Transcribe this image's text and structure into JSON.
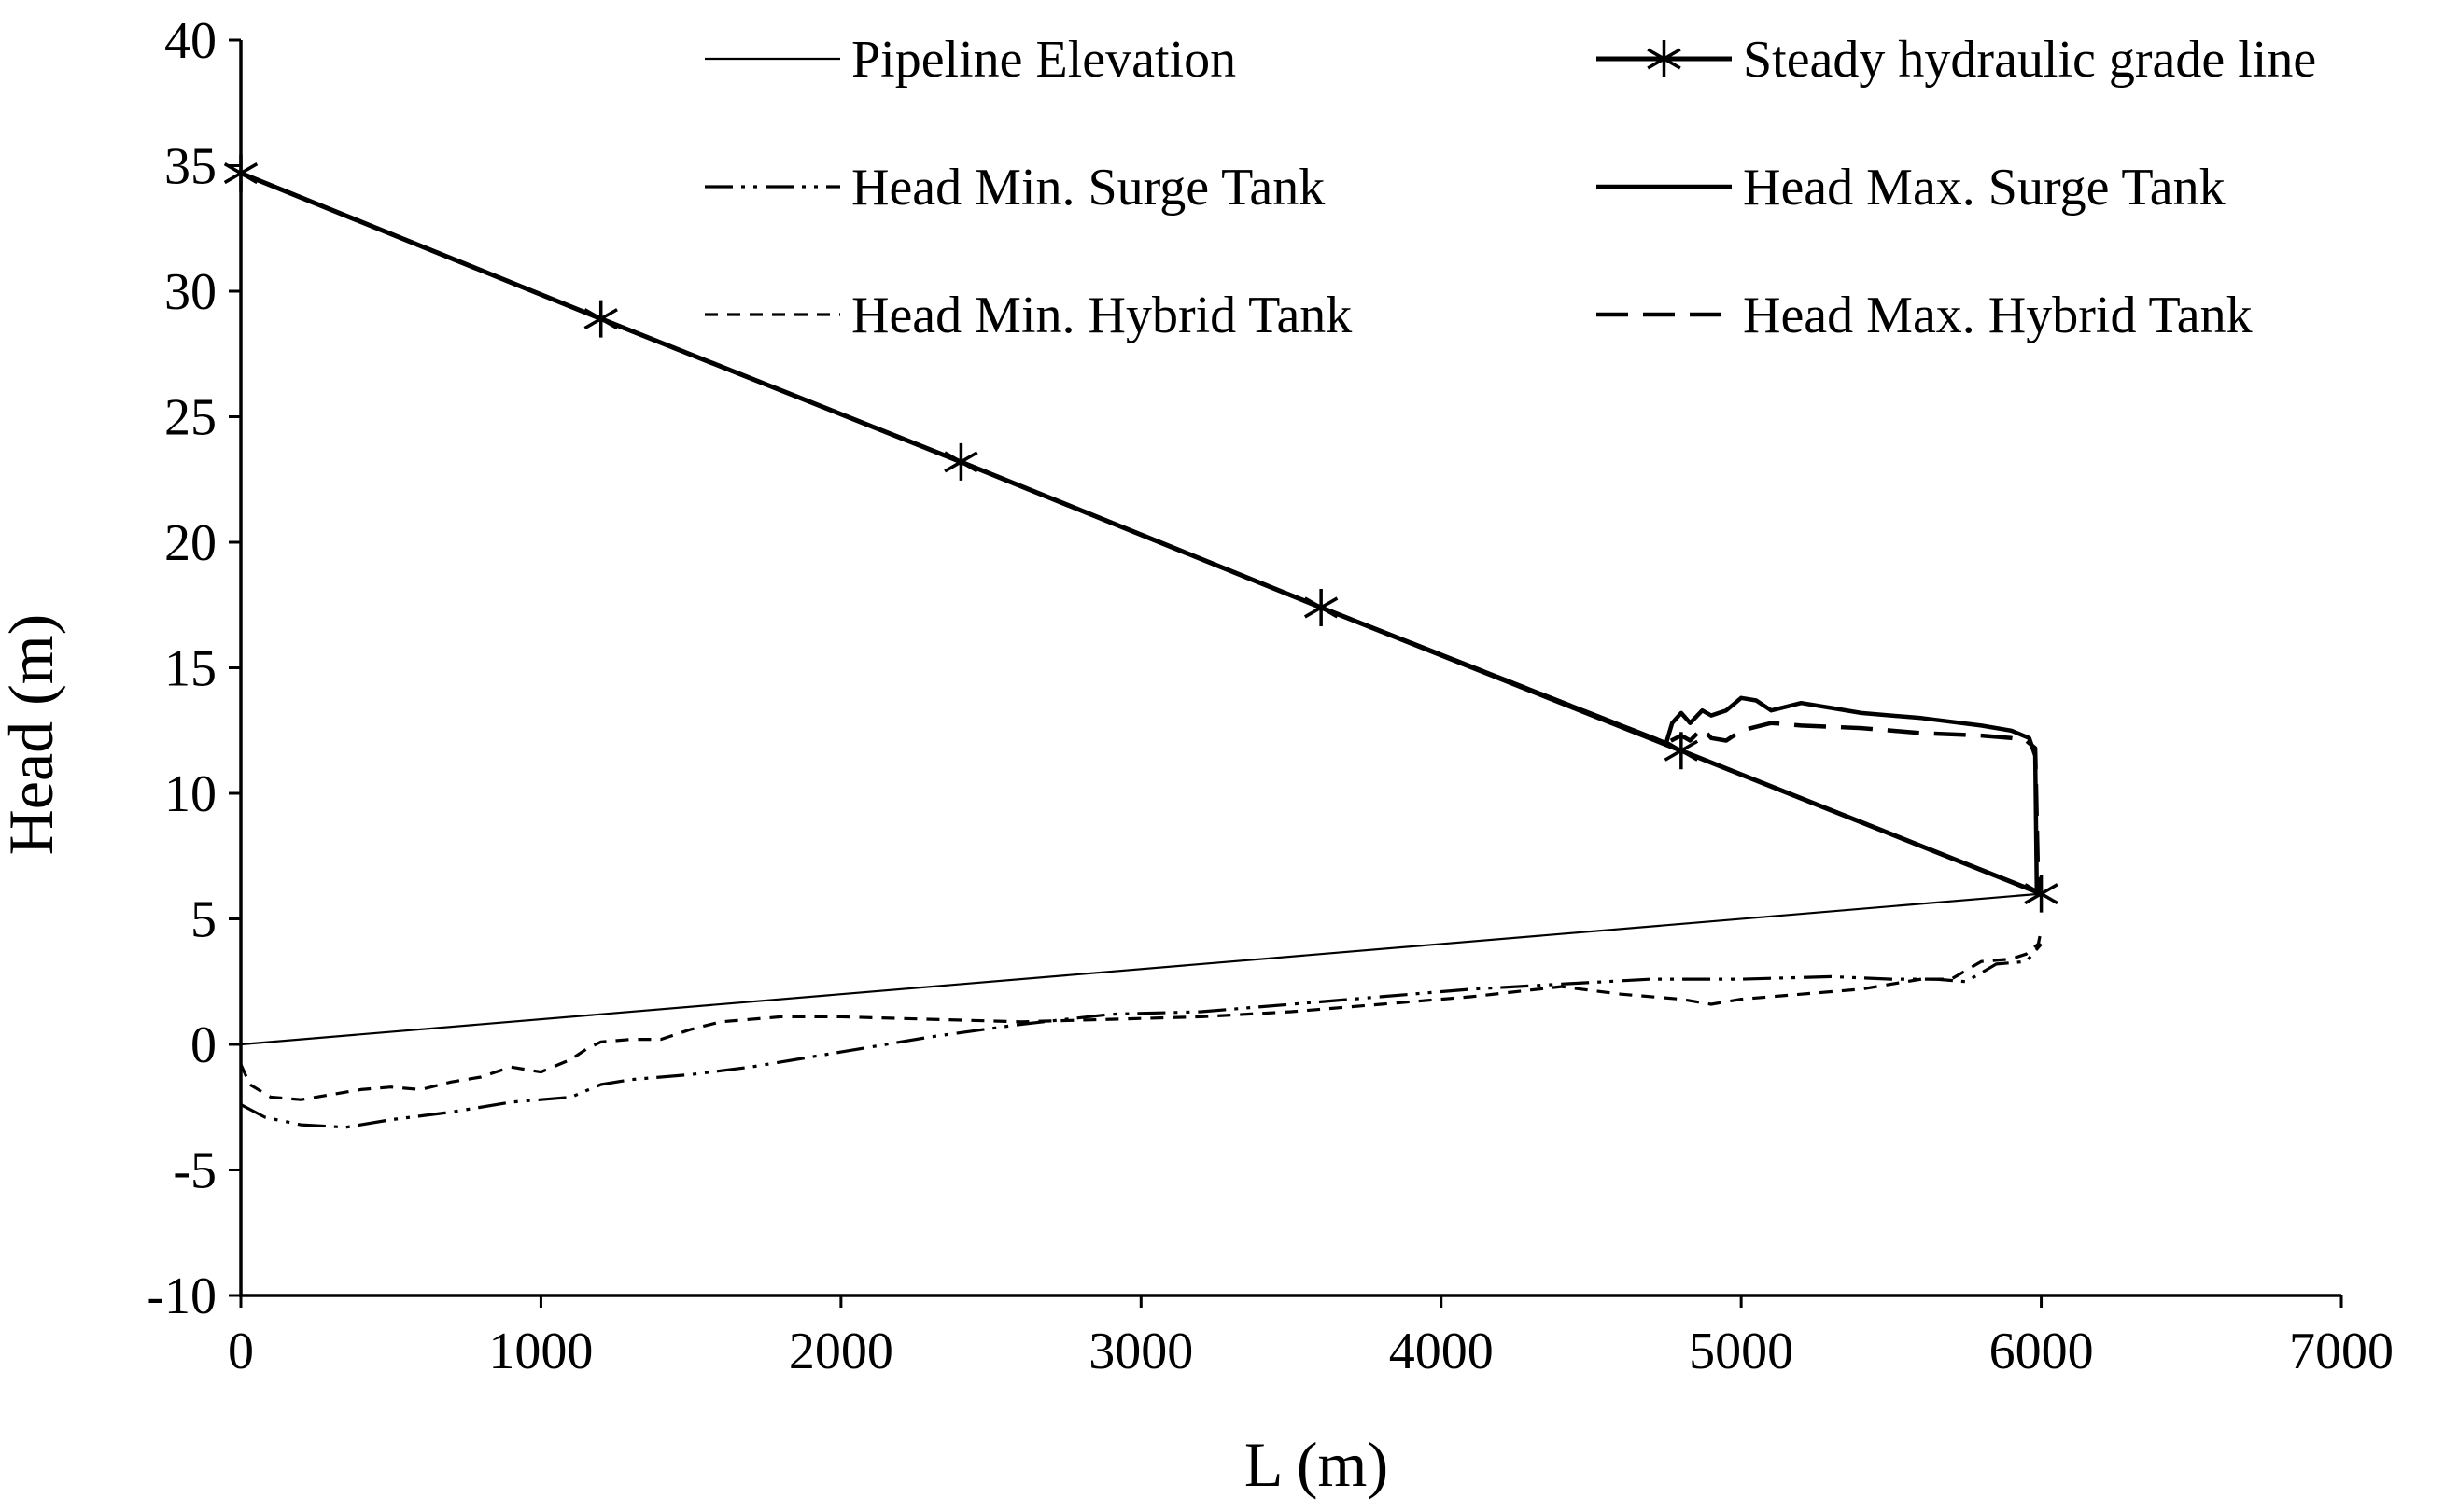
{
  "chart_data": {
    "type": "line",
    "title": "",
    "xlabel": "L (m)",
    "ylabel": "Head (m)",
    "xlim": [
      0,
      7000
    ],
    "ylim": [
      -10,
      40
    ],
    "xticks": [
      0,
      1000,
      2000,
      3000,
      4000,
      5000,
      6000,
      7000
    ],
    "yticks": [
      -10,
      -5,
      0,
      5,
      10,
      15,
      20,
      25,
      30,
      35,
      40
    ],
    "grid": false,
    "legend_position": "top-right",
    "series": [
      {
        "name": "Pipeline Elevation",
        "style": "thin-solid",
        "color": "#000000",
        "x": [
          0,
          6000
        ],
        "y": [
          0,
          6
        ]
      },
      {
        "name": "Steady hydraulic grade line",
        "style": "solid-star-markers",
        "color": "#000000",
        "x": [
          0,
          1200,
          2400,
          3600,
          4800,
          6000
        ],
        "y": [
          34.7,
          28.9,
          23.2,
          17.4,
          11.7,
          6.0
        ]
      },
      {
        "name": "Head Min. Surge Tank",
        "style": "dash-dot-dot",
        "color": "#000000",
        "x": [
          0,
          80,
          200,
          350,
          500,
          700,
          900,
          1000,
          1100,
          1200,
          1300,
          1500,
          1700,
          2000,
          2300,
          2600,
          2900,
          3200,
          3500,
          3800,
          4100,
          4400,
          4700,
          5000,
          5300,
          5500,
          5650,
          5750,
          5850,
          5950,
          6000
        ],
        "y": [
          -2.4,
          -2.9,
          -3.2,
          -3.3,
          -3.0,
          -2.7,
          -2.3,
          -2.2,
          -2.1,
          -1.6,
          -1.4,
          -1.2,
          -0.9,
          -0.3,
          0.3,
          0.8,
          1.2,
          1.3,
          1.6,
          1.9,
          2.2,
          2.4,
          2.6,
          2.6,
          2.7,
          2.6,
          2.6,
          2.5,
          3.2,
          3.3,
          4.0
        ]
      },
      {
        "name": "Head Max. Surge Tank",
        "style": "solid",
        "color": "#000000",
        "x": [
          0,
          1200,
          2400,
          3600,
          4750,
          4770,
          4800,
          4830,
          4870,
          4900,
          4950,
          5000,
          5050,
          5100,
          5200,
          5300,
          5400,
          5600,
          5800,
          5900,
          5960,
          5980,
          5985,
          6000
        ],
        "y": [
          34.7,
          28.9,
          23.2,
          17.4,
          12.0,
          12.8,
          13.2,
          12.8,
          13.3,
          13.1,
          13.3,
          13.8,
          13.7,
          13.3,
          13.6,
          13.4,
          13.2,
          13.0,
          12.7,
          12.5,
          12.2,
          11.5,
          6.1,
          6.0
        ]
      },
      {
        "name": "Head Min. Hybrid Tank",
        "style": "short-dash",
        "color": "#000000",
        "x": [
          0,
          30,
          100,
          200,
          300,
          400,
          500,
          600,
          700,
          800,
          900,
          1000,
          1100,
          1150,
          1200,
          1300,
          1400,
          1500,
          1600,
          1800,
          2000,
          2300,
          2600,
          2900,
          3200,
          3500,
          3800,
          4100,
          4400,
          4600,
          4800,
          4900,
          5000,
          5200,
          5400,
          5600,
          5700,
          5800,
          5900,
          5950,
          5990,
          6000
        ],
        "y": [
          -0.8,
          -1.6,
          -2.1,
          -2.2,
          -2.0,
          -1.8,
          -1.7,
          -1.8,
          -1.5,
          -1.3,
          -0.9,
          -1.1,
          -0.6,
          -0.2,
          0.1,
          0.2,
          0.2,
          0.6,
          0.9,
          1.1,
          1.1,
          1.0,
          0.9,
          1.0,
          1.1,
          1.3,
          1.6,
          1.9,
          2.3,
          2.0,
          1.8,
          1.6,
          1.8,
          2.0,
          2.2,
          2.6,
          2.6,
          3.3,
          3.4,
          3.6,
          4.0,
          4.6
        ]
      },
      {
        "name": "Head Max. Hybrid Tank",
        "style": "long-dash",
        "color": "#000000",
        "x": [
          0,
          1200,
          2400,
          3600,
          4750,
          4800,
          4830,
          4870,
          4900,
          4950,
          5000,
          5100,
          5200,
          5400,
          5600,
          5800,
          5900,
          5950,
          5980,
          5990,
          6000
        ],
        "y": [
          34.7,
          28.9,
          23.2,
          17.4,
          12.0,
          12.3,
          12.1,
          12.6,
          12.2,
          12.1,
          12.5,
          12.8,
          12.7,
          12.6,
          12.4,
          12.3,
          12.2,
          12.1,
          11.8,
          6.2,
          6.0
        ]
      }
    ]
  }
}
